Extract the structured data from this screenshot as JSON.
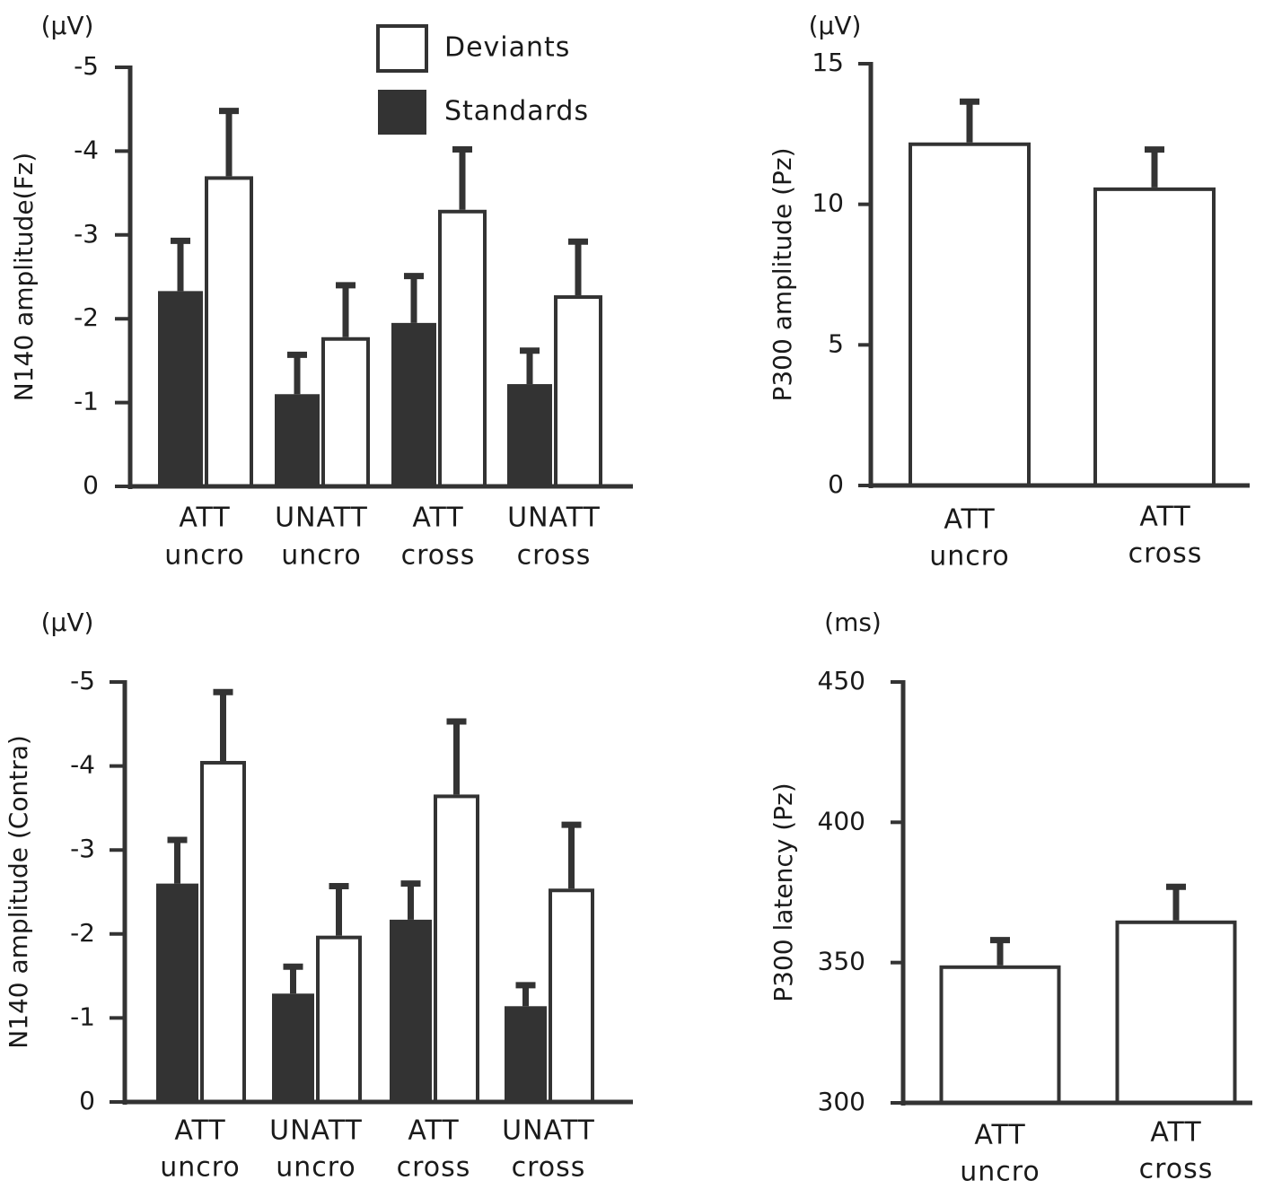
{
  "chart_data": [
    {
      "id": "n140_fz",
      "type": "bar",
      "unit": "(μV)",
      "ylabel": "N140 amplitude(Fz)",
      "ylim": [
        0,
        -5
      ],
      "yticks": [
        0,
        -1,
        -2,
        -3,
        -4,
        -5
      ],
      "ytick_labels": [
        "0",
        "-1",
        "-2",
        "-3",
        "-4",
        "-5"
      ],
      "categories": [
        [
          "ATT",
          "uncro"
        ],
        [
          "UNATT",
          "uncro"
        ],
        [
          "ATT",
          "cross"
        ],
        [
          "UNATT",
          "cross"
        ]
      ],
      "series": [
        {
          "name": "Standards",
          "color": "#333333",
          "values": [
            -2.33,
            -1.1,
            -1.95,
            -1.22
          ],
          "errors": [
            0.6,
            0.47,
            0.56,
            0.4
          ]
        },
        {
          "name": "Deviants",
          "color": "#ffffff",
          "values": [
            -3.7,
            -1.78,
            -3.3,
            -2.28
          ],
          "errors": [
            0.78,
            0.62,
            0.72,
            0.64
          ]
        }
      ],
      "legend": {
        "position": "top-center",
        "entries": [
          "Deviants",
          "Standards"
        ]
      }
    },
    {
      "id": "p300_amp",
      "type": "bar",
      "unit": "(μV)",
      "ylabel": "P300 amplitude (Pz)",
      "ylim": [
        0,
        15
      ],
      "yticks": [
        0,
        5,
        10,
        15
      ],
      "ytick_labels": [
        "0",
        "5",
        "10",
        "15"
      ],
      "categories": [
        [
          "ATT",
          "uncro"
        ],
        [
          "ATT",
          "cross"
        ]
      ],
      "series": [
        {
          "name": "Deviants",
          "color": "#ffffff",
          "values": [
            12.2,
            10.6
          ],
          "errors": [
            1.45,
            1.35
          ]
        }
      ]
    },
    {
      "id": "n140_contra",
      "type": "bar",
      "unit": "(μV)",
      "ylabel": "N140 amplitude (Contra)",
      "ylim": [
        0,
        -5
      ],
      "yticks": [
        0,
        -1,
        -2,
        -3,
        -4,
        -5
      ],
      "ytick_labels": [
        "0",
        "-1",
        "-2",
        "-3",
        "-4",
        "-5"
      ],
      "categories": [
        [
          "ATT",
          "uncro"
        ],
        [
          "UNATT",
          "uncro"
        ],
        [
          "ATT",
          "cross"
        ],
        [
          "UNATT",
          "cross"
        ]
      ],
      "series": [
        {
          "name": "Standards",
          "color": "#333333",
          "values": [
            -2.6,
            -1.29,
            -2.17,
            -1.14
          ],
          "errors": [
            0.52,
            0.32,
            0.43,
            0.25
          ]
        },
        {
          "name": "Deviants",
          "color": "#ffffff",
          "values": [
            -4.06,
            -1.98,
            -3.66,
            -2.54
          ],
          "errors": [
            0.82,
            0.59,
            0.87,
            0.76
          ]
        }
      ]
    },
    {
      "id": "p300_lat",
      "type": "bar",
      "unit": "(ms)",
      "ylabel": "P300 latency (Pz)",
      "ylim": [
        300,
        450
      ],
      "yticks": [
        300,
        350,
        400,
        450
      ],
      "ytick_labels": [
        "300",
        "350",
        "400",
        "450"
      ],
      "categories": [
        [
          "ATT",
          "uncro"
        ],
        [
          "ATT",
          "cross"
        ]
      ],
      "series": [
        {
          "name": "Deviants",
          "color": "#ffffff",
          "values": [
            349,
            365
          ],
          "errors": [
            9,
            12
          ]
        }
      ]
    }
  ]
}
